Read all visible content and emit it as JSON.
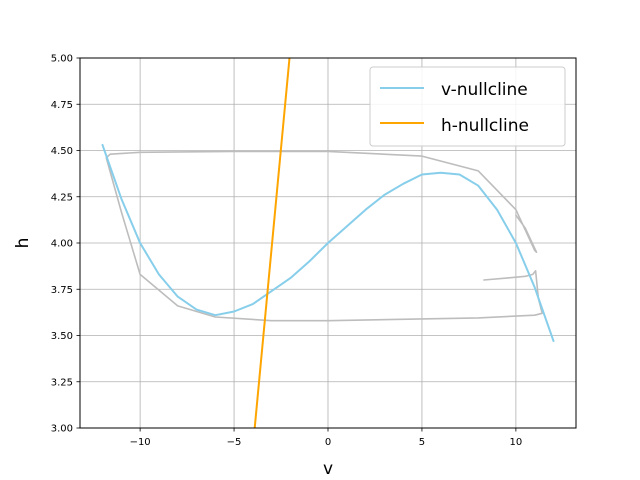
{
  "chart_data": {
    "type": "line",
    "title": "",
    "xlabel": "v",
    "ylabel": "h",
    "xlim": [
      -13.2,
      13.2
    ],
    "ylim": [
      3.0,
      5.0
    ],
    "grid": true,
    "legend_position": "top-right",
    "x_ticks": [
      {
        "value": -10,
        "label": "−10"
      },
      {
        "value": -5,
        "label": "−5"
      },
      {
        "value": 0,
        "label": "0"
      },
      {
        "value": 5,
        "label": "5"
      },
      {
        "value": 10,
        "label": "10"
      }
    ],
    "y_ticks": [
      {
        "value": 3.0,
        "label": "3.00"
      },
      {
        "value": 3.25,
        "label": "3.25"
      },
      {
        "value": 3.5,
        "label": "3.50"
      },
      {
        "value": 3.75,
        "label": "3.75"
      },
      {
        "value": 4.0,
        "label": "4.00"
      },
      {
        "value": 4.25,
        "label": "4.25"
      },
      {
        "value": 4.5,
        "label": "4.50"
      },
      {
        "value": 4.75,
        "label": "4.75"
      },
      {
        "value": 5.0,
        "label": "5.00"
      }
    ],
    "series": [
      {
        "name": "v-nullcline",
        "color": "#87ceeb",
        "x": [
          -12,
          -11,
          -10,
          -9,
          -8,
          -7,
          -6,
          -5,
          -4,
          -3,
          -2,
          -1,
          0,
          1,
          2,
          3,
          4,
          5,
          6,
          7,
          8,
          9,
          10,
          11,
          12
        ],
        "y": [
          4.53,
          4.24,
          4.0,
          3.83,
          3.71,
          3.64,
          3.61,
          3.63,
          3.67,
          3.74,
          3.81,
          3.9,
          4.0,
          4.09,
          4.18,
          4.26,
          4.32,
          4.37,
          4.38,
          4.37,
          4.31,
          4.18,
          4.0,
          3.76,
          3.47
        ]
      },
      {
        "name": "h-nullcline",
        "color": "#ffa500",
        "x": [
          -3.9,
          -2.05
        ],
        "y": [
          3.0,
          5.0
        ]
      },
      {
        "color": "#bdbdbd",
        "x": [
          8.3,
          9.5,
          10.5,
          10.9,
          11.05,
          11.2,
          11.4,
          11.0,
          10.0,
          8.0,
          5.0,
          0.0,
          -3.0,
          -6.0,
          -8.0,
          -10.0,
          -11.0,
          -11.8,
          -11.6,
          -10.0,
          -5.0,
          0.0,
          5.0,
          8.0,
          10.0,
          11.0,
          11.1,
          10.5,
          10.0
        ],
        "y": [
          3.8,
          3.81,
          3.82,
          3.83,
          3.85,
          3.7,
          3.62,
          3.61,
          3.605,
          3.595,
          3.59,
          3.58,
          3.58,
          3.6,
          3.66,
          3.83,
          4.17,
          4.46,
          4.48,
          4.49,
          4.495,
          4.495,
          4.47,
          4.39,
          4.18,
          3.96,
          3.95,
          4.08,
          4.15
        ]
      }
    ]
  }
}
